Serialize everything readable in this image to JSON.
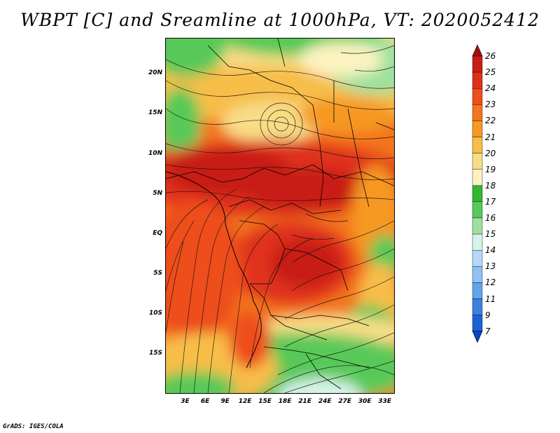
{
  "title": "WBPT [C] and Sreamline at 1000hPa, VT: 2020052412",
  "footer": "GrADS: IGES/COLA",
  "map": {
    "lat_labels": [
      "20N",
      "15N",
      "10N",
      "5N",
      "EQ",
      "5S",
      "10S",
      "15S"
    ],
    "lat_values": [
      20,
      15,
      10,
      5,
      0,
      -5,
      -10,
      -15
    ],
    "lon_labels": [
      "3E",
      "6E",
      "9E",
      "12E",
      "15E",
      "18E",
      "21E",
      "24E",
      "27E",
      "30E",
      "33E"
    ],
    "lon_values": [
      3,
      6,
      9,
      12,
      15,
      18,
      21,
      24,
      27,
      30,
      33
    ],
    "lat_range": [
      -20,
      24.5
    ],
    "lon_range": [
      0,
      34.5
    ]
  },
  "colorbar": {
    "labels": [
      "26",
      "25",
      "24",
      "23",
      "22",
      "21",
      "20",
      "19",
      "18",
      "17",
      "16",
      "15",
      "14",
      "13",
      "12",
      "11",
      "9",
      "7"
    ],
    "colors": [
      "#a60f0f",
      "#c81e12",
      "#e0301a",
      "#ee4d1c",
      "#f4751e",
      "#f69822",
      "#f7bd4a",
      "#f8dd86",
      "#fbf3c0",
      "#2fb82f",
      "#58c958",
      "#9ee19e",
      "#d6f3e8",
      "#b4d8f6",
      "#8fc1f2",
      "#64a4ea",
      "#3b82df",
      "#1c62d4",
      "#0c44c4"
    ]
  }
}
